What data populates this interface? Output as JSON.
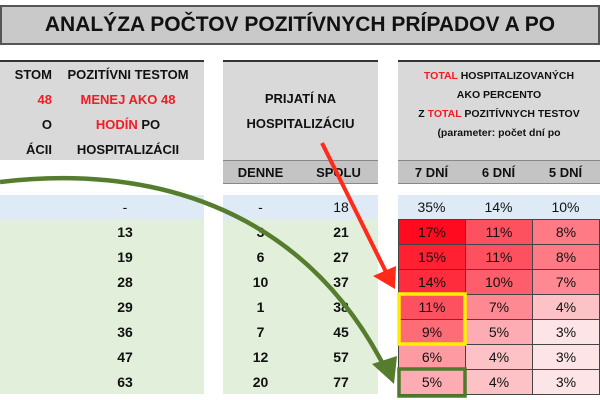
{
  "title": "ANALÝZA POČTOV POZITÍVNYCH PRÍPADOV A PO",
  "left": {
    "col1_lines": [
      "STOM",
      "48",
      "O",
      "ÁCII"
    ],
    "col2_lines": [
      "POZITÍVNI TESTOM",
      "MENEJ AKO 48",
      "HODÍN",
      "PO",
      "HOSPITALIZÁCII"
    ],
    "values": [
      "-",
      "13",
      "19",
      "28",
      "29",
      "36",
      "47",
      "63"
    ]
  },
  "middle": {
    "header_lines": [
      "PRIJATÍ NA",
      "HOSPITALIZÁCIU"
    ],
    "sub": [
      "DENNE",
      "SPOLU"
    ],
    "denne": [
      "-",
      "3",
      "6",
      "10",
      "1",
      "7",
      "12",
      "20"
    ],
    "spolu": [
      "18",
      "21",
      "27",
      "37",
      "38",
      "45",
      "57",
      "77"
    ]
  },
  "right": {
    "header_lines": [
      "TOTAL",
      "HOSPITALIZOVANÝCH",
      "AKO PERCENTO",
      "Z",
      "TOTAL",
      "POZITÍVNYCH TESTOV",
      "(parameter: počet dní po"
    ],
    "sub": [
      "7 DNÍ",
      "6 DNÍ",
      "5 DNÍ"
    ],
    "first_row": [
      "35%",
      "14%",
      "10%"
    ],
    "grid": [
      [
        "17%",
        "11%",
        "8%"
      ],
      [
        "15%",
        "11%",
        "8%"
      ],
      [
        "14%",
        "10%",
        "7%"
      ],
      [
        "11%",
        "7%",
        "4%"
      ],
      [
        "9%",
        "5%",
        "3%"
      ],
      [
        "6%",
        "4%",
        "3%"
      ],
      [
        "5%",
        "4%",
        "3%"
      ]
    ]
  },
  "colors": {
    "heat_high": "#ff0a1e",
    "heat_low": "#fde4e6",
    "highlight_yellow": "#ffee00",
    "highlight_green": "#4e7a2c",
    "arrow_red": "#ff2a1a",
    "arrow_green": "#567d2e"
  }
}
